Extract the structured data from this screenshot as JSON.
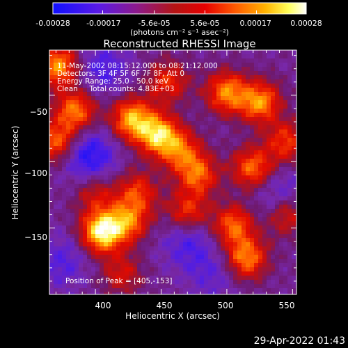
{
  "colorbar": {
    "tick_labels": [
      "-0.00028",
      "-0.00017",
      "-5.6e-05",
      "5.6e-05",
      "0.00017",
      "0.00028"
    ],
    "unit_label": "(photons cm⁻² s⁻¹ asec⁻²)"
  },
  "footer": {
    "timestamp": "29-Apr-2022 01:43"
  },
  "chart_data": {
    "type": "heatmap",
    "title": "Reconstructed RHESSI Image",
    "xlabel": "Heliocentric X (arcsec)",
    "ylabel": "Heliocentric Y (arcsec)",
    "xlim": [
      365,
      553
    ],
    "ylim": [
      -200,
      -16
    ],
    "x_ticks": [
      400,
      450,
      500,
      550
    ],
    "y_ticks": [
      -50,
      -100,
      -150
    ],
    "x_tick_labels": [
      "400",
      "450",
      "500",
      "550"
    ],
    "y_tick_labels": [
      "−50",
      "−100",
      "−150"
    ],
    "colorscale": "rainbow-to-white (blue, purple, red, orange, yellow, white)",
    "color_range": [
      -0.00028,
      0.00028
    ],
    "annotations": [
      "11-May-2002 08:15:12.000 to 08:21:12.000",
      "Detectors: 3F 4F 5F 6F 7F 8F, Att 0",
      "Energy Range: 25.0 - 50.0 keV",
      "Clean     Total counts: 4.83E+03"
    ],
    "peak_label": "Position of Peak = [405,-153]",
    "peak_position": [
      405,
      -153
    ],
    "blobs": [
      {
        "x": 405,
        "y": -153,
        "amp": 1.0
      },
      {
        "x": 425,
        "y": -145,
        "amp": 0.62
      },
      {
        "x": 432,
        "y": -123,
        "amp": 0.5
      },
      {
        "x": 448,
        "y": -80,
        "amp": 0.85
      },
      {
        "x": 428,
        "y": -68,
        "amp": 0.8
      },
      {
        "x": 372,
        "y": -28,
        "amp": 0.75
      },
      {
        "x": 385,
        "y": -62,
        "amp": 0.68
      },
      {
        "x": 370,
        "y": -85,
        "amp": 0.62
      },
      {
        "x": 500,
        "y": -48,
        "amp": 0.7
      },
      {
        "x": 525,
        "y": -55,
        "amp": 0.72
      },
      {
        "x": 545,
        "y": -85,
        "amp": 0.52
      },
      {
        "x": 520,
        "y": -105,
        "amp": 0.65
      },
      {
        "x": 478,
        "y": -110,
        "amp": 0.6
      },
      {
        "x": 465,
        "y": -92,
        "amp": 0.55
      },
      {
        "x": 470,
        "y": -138,
        "amp": 0.52
      },
      {
        "x": 505,
        "y": -148,
        "amp": 0.62
      },
      {
        "x": 545,
        "y": -140,
        "amp": 0.45
      },
      {
        "x": 515,
        "y": -173,
        "amp": 0.7
      },
      {
        "x": 420,
        "y": -185,
        "amp": 0.38
      },
      {
        "x": 400,
        "y": -125,
        "amp": 0.35
      },
      {
        "x": 455,
        "y": -40,
        "amp": 0.48
      },
      {
        "x": 395,
        "y": -95,
        "amp": -0.45
      },
      {
        "x": 405,
        "y": -30,
        "amp": -0.3
      },
      {
        "x": 470,
        "y": -160,
        "amp": -0.3
      },
      {
        "x": 540,
        "y": -125,
        "amp": -0.28
      },
      {
        "x": 375,
        "y": -175,
        "amp": -0.25
      },
      {
        "x": 490,
        "y": -185,
        "amp": -0.2
      }
    ]
  }
}
